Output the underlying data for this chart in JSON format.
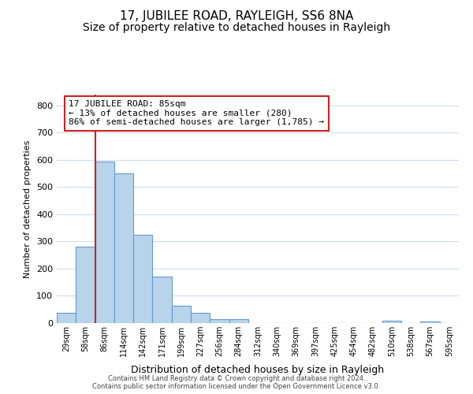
{
  "title": "17, JUBILEE ROAD, RAYLEIGH, SS6 8NA",
  "subtitle": "Size of property relative to detached houses in Rayleigh",
  "xlabel": "Distribution of detached houses by size in Rayleigh",
  "ylabel": "Number of detached properties",
  "bar_labels": [
    "29sqm",
    "58sqm",
    "86sqm",
    "114sqm",
    "142sqm",
    "171sqm",
    "199sqm",
    "227sqm",
    "256sqm",
    "284sqm",
    "312sqm",
    "340sqm",
    "369sqm",
    "397sqm",
    "425sqm",
    "454sqm",
    "482sqm",
    "510sqm",
    "538sqm",
    "567sqm",
    "595sqm"
  ],
  "bar_values": [
    38,
    280,
    595,
    550,
    325,
    170,
    65,
    38,
    15,
    15,
    0,
    0,
    0,
    0,
    0,
    0,
    0,
    8,
    0,
    5,
    0
  ],
  "bar_color": "#b8d4eb",
  "bar_edge_color": "#6699cc",
  "vline_x_index": 2,
  "vline_color": "#cc2222",
  "annotation_text": "17 JUBILEE ROAD: 85sqm\n← 13% of detached houses are smaller (280)\n86% of semi-detached houses are larger (1,785) →",
  "annotation_box_color": "#ffffff",
  "annotation_box_edge": "#cc2222",
  "ylim": [
    0,
    840
  ],
  "yticks": [
    0,
    100,
    200,
    300,
    400,
    500,
    600,
    700,
    800
  ],
  "grid_color": "#ccddee",
  "footer_text": "Contains HM Land Registry data © Crown copyright and database right 2024.\nContains public sector information licensed under the Open Government Licence v3.0.",
  "background_color": "#ffffff",
  "title_fontsize": 11,
  "subtitle_fontsize": 10
}
